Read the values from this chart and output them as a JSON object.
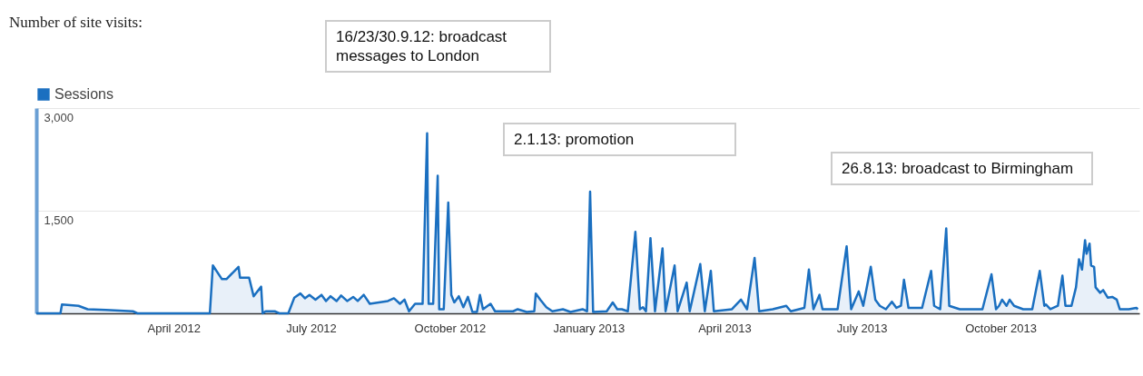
{
  "chart_data": {
    "type": "area",
    "title": "Number of site visits:",
    "annotations": [
      "16/23/30.9.12: broadcast messages to London",
      "2.1.13: promotion",
      "26.8.13: broadcast to Birmingham"
    ],
    "x": [
      "2012-01-01",
      "2012-01-17",
      "2012-01-18",
      "2012-01-29",
      "2012-02-04",
      "2012-02-16",
      "2012-03-05",
      "2012-03-08",
      "2012-04-25",
      "2012-04-27",
      "2012-05-03",
      "2012-05-06",
      "2012-05-14",
      "2012-05-15",
      "2012-05-21",
      "2012-05-24",
      "2012-05-29",
      "2012-05-30",
      "2012-06-01",
      "2012-06-07",
      "2012-06-10",
      "2012-06-16",
      "2012-06-20",
      "2012-06-24",
      "2012-06-27",
      "2012-06-30",
      "2012-07-04",
      "2012-07-08",
      "2012-07-11",
      "2012-07-14",
      "2012-07-18",
      "2012-07-21",
      "2012-07-25",
      "2012-07-29",
      "2012-08-01",
      "2012-08-05",
      "2012-08-09",
      "2012-08-15",
      "2012-08-21",
      "2012-08-25",
      "2012-08-29",
      "2012-09-01",
      "2012-09-04",
      "2012-09-08",
      "2012-09-13",
      "2012-09-16",
      "2012-09-17",
      "2012-09-20",
      "2012-09-23",
      "2012-09-24",
      "2012-09-27",
      "2012-09-30",
      "2012-10-02",
      "2012-10-04",
      "2012-10-07",
      "2012-10-10",
      "2012-10-13",
      "2012-10-16",
      "2012-10-19",
      "2012-10-21",
      "2012-10-23",
      "2012-10-28",
      "2012-10-31",
      "2012-11-12",
      "2012-11-15",
      "2012-11-21",
      "2012-11-26",
      "2012-11-27",
      "2012-11-30",
      "2012-12-04",
      "2012-12-08",
      "2012-12-15",
      "2012-12-20",
      "2012-12-28",
      "2012-12-31",
      "2013-01-02",
      "2013-01-04",
      "2013-01-13",
      "2013-01-17",
      "2013-01-20",
      "2013-01-23",
      "2013-01-27",
      "2013-02-01",
      "2013-02-04",
      "2013-02-06",
      "2013-02-08",
      "2013-02-11",
      "2013-02-14",
      "2013-02-19",
      "2013-02-21",
      "2013-02-27",
      "2013-03-01",
      "2013-03-07",
      "2013-03-09",
      "2013-03-16",
      "2013-03-19",
      "2013-03-23",
      "2013-03-25",
      "2013-04-06",
      "2013-04-12",
      "2013-04-16",
      "2013-04-21",
      "2013-04-24",
      "2013-05-03",
      "2013-05-12",
      "2013-05-15",
      "2013-05-24",
      "2013-05-27",
      "2013-05-30",
      "2013-06-03",
      "2013-06-05",
      "2013-06-15",
      "2013-06-21",
      "2013-06-24",
      "2013-06-29",
      "2013-07-02",
      "2013-07-07",
      "2013-07-10",
      "2013-07-13",
      "2013-07-17",
      "2013-07-21",
      "2013-07-24",
      "2013-07-27",
      "2013-07-29",
      "2013-08-01",
      "2013-08-10",
      "2013-08-16",
      "2013-08-18",
      "2013-08-22",
      "2013-08-26",
      "2013-08-28",
      "2013-09-04",
      "2013-09-11",
      "2013-09-19",
      "2013-09-25",
      "2013-09-28",
      "2013-09-30",
      "2013-10-02",
      "2013-10-05",
      "2013-10-07",
      "2013-10-10",
      "2013-10-16",
      "2013-10-22",
      "2013-10-27",
      "2013-10-30",
      "2013-10-31",
      "2013-11-03",
      "2013-11-08",
      "2013-11-11",
      "2013-11-13",
      "2013-11-17",
      "2013-11-20",
      "2013-11-22",
      "2013-11-24",
      "2013-11-26",
      "2013-11-27",
      "2013-11-29",
      "2013-11-30",
      "2013-12-02",
      "2013-12-03",
      "2013-12-06",
      "2013-12-08",
      "2013-12-11",
      "2013-12-14",
      "2013-12-17",
      "2013-12-19",
      "2013-12-25",
      "2013-12-30",
      "2013-12-31"
    ],
    "series": [
      {
        "name": "Sessions",
        "color": "#1a6fc0",
        "values": [
          0,
          0,
          130,
          110,
          60,
          50,
          30,
          0,
          0,
          700,
          500,
          500,
          680,
          520,
          520,
          250,
          390,
          0,
          30,
          30,
          0,
          0,
          230,
          290,
          220,
          270,
          200,
          270,
          180,
          250,
          180,
          260,
          180,
          240,
          180,
          270,
          140,
          160,
          180,
          220,
          140,
          200,
          30,
          140,
          140,
          2630,
          140,
          140,
          2010,
          60,
          60,
          1620,
          270,
          160,
          250,
          90,
          240,
          20,
          20,
          270,
          60,
          140,
          30,
          30,
          60,
          20,
          30,
          290,
          200,
          90,
          30,
          60,
          20,
          60,
          30,
          1780,
          20,
          30,
          160,
          60,
          60,
          30,
          1190,
          60,
          90,
          30,
          1100,
          30,
          950,
          30,
          700,
          30,
          450,
          30,
          720,
          30,
          620,
          30,
          60,
          200,
          60,
          810,
          30,
          60,
          110,
          30,
          80,
          640,
          60,
          270,
          60,
          60,
          980,
          60,
          320,
          110,
          680,
          200,
          110,
          60,
          170,
          80,
          110,
          490,
          80,
          80,
          620,
          110,
          60,
          1240,
          110,
          60,
          60,
          60,
          570,
          60,
          110,
          200,
          110,
          200,
          110,
          60,
          60,
          620,
          110,
          130,
          60,
          110,
          550,
          110,
          110,
          380,
          790,
          640,
          1070,
          870,
          1020,
          700,
          680,
          380,
          300,
          340,
          230,
          240,
          200,
          60,
          60,
          80,
          60
        ]
      }
    ],
    "xlim": [
      "2012-01-01",
      "2014-01-01"
    ],
    "xticks": [
      {
        "value": "2012-04-01",
        "label": "April 2012"
      },
      {
        "value": "2012-07-01",
        "label": "July 2012"
      },
      {
        "value": "2012-10-01",
        "label": "October 2012"
      },
      {
        "value": "2013-01-01",
        "label": "January 2013"
      },
      {
        "value": "2013-04-01",
        "label": "April 2013"
      },
      {
        "value": "2013-07-01",
        "label": "July 2013"
      },
      {
        "value": "2013-10-01",
        "label": "October 2013"
      }
    ],
    "ylim": [
      0,
      3000
    ],
    "yticks": [
      {
        "value": 1500,
        "label": "1,500"
      },
      {
        "value": 3000,
        "label": "3,000"
      }
    ],
    "grid": "y",
    "legend": "top left"
  }
}
